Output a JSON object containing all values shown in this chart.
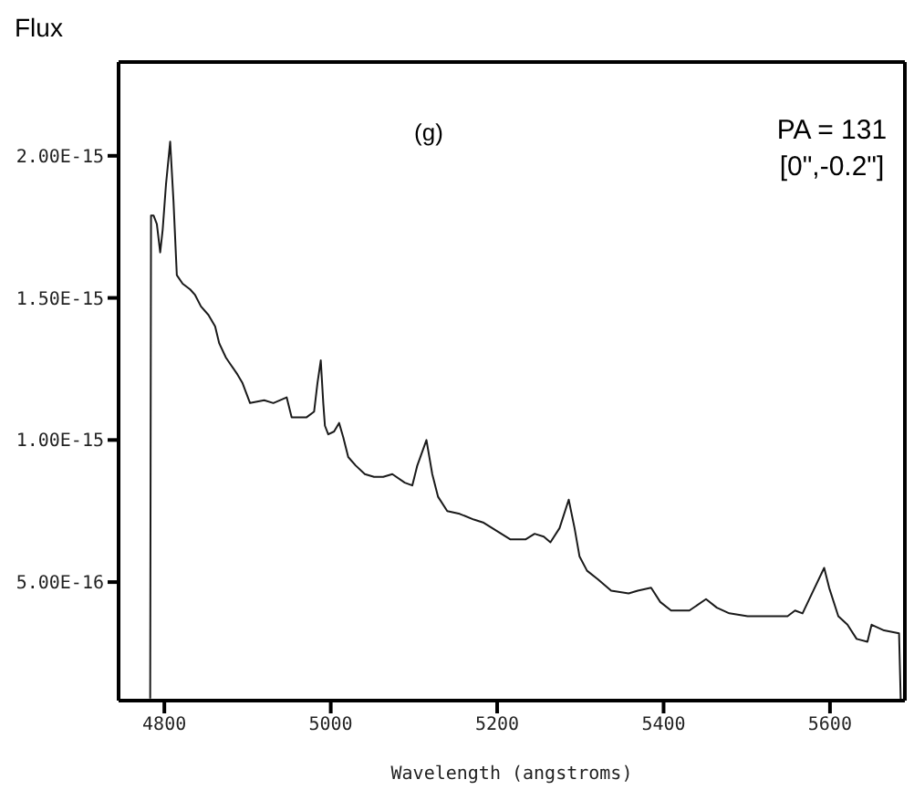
{
  "chart_data": {
    "type": "line",
    "ylabel": "Flux",
    "xlabel": "Wavelength (angstroms)",
    "annotations": [
      "(g)",
      "PA = 131",
      "[0\",-0.2\"]"
    ],
    "xlim": [
      4745,
      5690
    ],
    "xticks": [
      4800,
      5000,
      5200,
      5400,
      5600
    ],
    "ylim": [
      8.3e-17,
      2.33e-15
    ],
    "yticks": [
      {
        "value": 5e-16,
        "label": "5.00E-16"
      },
      {
        "value": 1e-15,
        "label": "1.00E-15"
      },
      {
        "value": 1.5e-15,
        "label": "1.50E-15"
      },
      {
        "value": 2e-15,
        "label": "2.00E-15"
      }
    ],
    "marker": "none",
    "line_style": "solid",
    "series": [
      {
        "color": "#1a1a1a",
        "x": [
          4783,
          4784,
          4787,
          4791,
          4795,
          4798,
          4802,
          4807,
          4811,
          4815,
          4822,
          4831,
          4837,
          4844,
          4853,
          4861,
          4866,
          4874,
          4888,
          4894,
          4903,
          4920,
          4931,
          4947,
          4953,
          4971,
          4980,
          4984,
          4988,
          4991,
          4993,
          4997,
          5004,
          5010,
          5015,
          5021,
          5030,
          5041,
          5052,
          5063,
          5074,
          5089,
          5098,
          5104,
          5115,
          5122,
          5129,
          5140,
          5155,
          5172,
          5183,
          5194,
          5216,
          5234,
          5245,
          5256,
          5264,
          5275,
          5286,
          5293,
          5299,
          5308,
          5321,
          5337,
          5358,
          5369,
          5385,
          5396,
          5409,
          5431,
          5451,
          5464,
          5479,
          5501,
          5523,
          5549,
          5558,
          5567,
          5580,
          5593,
          5599,
          5610,
          5621,
          5632,
          5645,
          5650,
          5665,
          5683,
          5685
        ],
        "values": [
          9e-17,
          1.79e-15,
          1.79e-15,
          1.76e-15,
          1.66e-15,
          1.74e-15,
          1.9e-15,
          2.05e-15,
          1.84e-15,
          1.58e-15,
          1.55e-15,
          1.53e-15,
          1.51e-15,
          1.47e-15,
          1.44e-15,
          1.4e-15,
          1.34e-15,
          1.29e-15,
          1.23e-15,
          1.2e-15,
          1.13e-15,
          1.14e-15,
          1.13e-15,
          1.15e-15,
          1.08e-15,
          1.08e-15,
          1.1e-15,
          1.2e-15,
          1.28e-15,
          1.13e-15,
          1.05e-15,
          1.02e-15,
          1.03e-15,
          1.06e-15,
          1.01e-15,
          9.4e-16,
          9.1e-16,
          8.8e-16,
          8.7e-16,
          8.7e-16,
          8.8e-16,
          8.5e-16,
          8.4e-16,
          9.1e-16,
          1e-15,
          8.8e-16,
          8e-16,
          7.5e-16,
          7.4e-16,
          7.2e-16,
          7.1e-16,
          6.9e-16,
          6.5e-16,
          6.5e-16,
          6.7e-16,
          6.6e-16,
          6.4e-16,
          6.9e-16,
          7.9e-16,
          6.9e-16,
          5.9e-16,
          5.4e-16,
          5.1e-16,
          4.7e-16,
          4.6e-16,
          4.7e-16,
          4.8e-16,
          4.3e-16,
          4e-16,
          4e-16,
          4.4e-16,
          4.1e-16,
          3.9e-16,
          3.8e-16,
          3.8e-16,
          3.8e-16,
          4e-16,
          3.9e-16,
          4.7e-16,
          5.5e-16,
          4.8e-16,
          3.8e-16,
          3.5e-16,
          3e-16,
          2.9e-16,
          3.5e-16,
          3.3e-16,
          3.2e-16,
          8.5e-17
        ]
      }
    ]
  }
}
